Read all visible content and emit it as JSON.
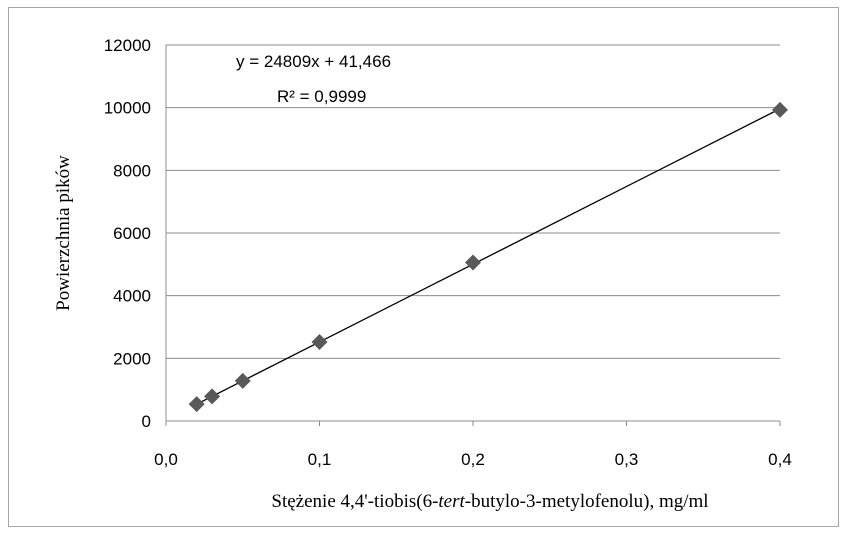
{
  "chart_data": {
    "type": "scatter",
    "x": [
      0.02,
      0.03,
      0.05,
      0.1,
      0.2,
      0.4
    ],
    "y": [
      540,
      785,
      1280,
      2520,
      5060,
      9930
    ],
    "xlabel_parts": [
      {
        "text": "Stężenie 4,4'-tiobis(6-",
        "italic": false
      },
      {
        "text": "tert",
        "italic": true
      },
      {
        "text": "-butylo-3-metylofenolu), mg/ml",
        "italic": false
      }
    ],
    "ylabel": "Powierzchnia pików",
    "xlim": [
      0.0,
      0.4
    ],
    "ylim": [
      0,
      12000
    ],
    "xticks": [
      "0,0",
      "0,1",
      "0,2",
      "0,3",
      "0,4"
    ],
    "yticks": [
      "0",
      "2000",
      "4000",
      "6000",
      "8000",
      "10000",
      "12000"
    ],
    "grid": "horizontal",
    "trendline": {
      "slope": 24809,
      "intercept": 41.466,
      "equation": "y = 24809x + 41,466",
      "r2": "R² = 0,9999"
    },
    "marker_color": "#595959",
    "line_color": "#000000",
    "grid_color": "#8c8c8c"
  }
}
